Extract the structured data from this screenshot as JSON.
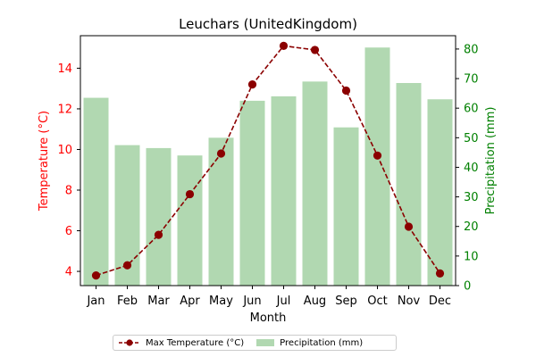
{
  "chart_data": {
    "type": "bar+line",
    "title": "Leuchars (UnitedKingdom)",
    "xlabel": "Month",
    "categories": [
      "Jan",
      "Feb",
      "Mar",
      "Apr",
      "May",
      "Jun",
      "Jul",
      "Aug",
      "Sep",
      "Oct",
      "Nov",
      "Dec"
    ],
    "series": [
      {
        "name": "Max Temperature (°C)",
        "type": "line",
        "axis": "left",
        "color": "#8b0000",
        "style": "dashed, circle markers",
        "values": [
          3.8,
          4.3,
          5.8,
          7.8,
          9.8,
          13.2,
          15.1,
          14.9,
          12.9,
          9.7,
          6.2,
          3.9
        ]
      },
      {
        "name": "Precipitation (mm)",
        "type": "bar",
        "axis": "right",
        "color": "#b1d8b1",
        "values": [
          63.5,
          47.5,
          46.5,
          44.0,
          50.0,
          62.5,
          64.0,
          69.0,
          53.5,
          80.5,
          68.5,
          63.0
        ]
      }
    ],
    "y_left": {
      "label": "Temperature (°C)",
      "color": "#ff0000",
      "ticks": [
        "4",
        "6",
        "8",
        "10",
        "12",
        "14"
      ],
      "ylim": [
        3.3,
        15.6
      ]
    },
    "y_right": {
      "label": "Precipitation (mm)",
      "color": "#008000",
      "ticks": [
        "0",
        "10",
        "20",
        "30",
        "40",
        "50",
        "60",
        "70",
        "80"
      ],
      "ylim": [
        0,
        84.5
      ]
    },
    "legend": {
      "placement": "bottom-center",
      "entries": [
        "Max Temperature (°C)",
        "Precipitation (mm)"
      ]
    },
    "grid": false
  }
}
